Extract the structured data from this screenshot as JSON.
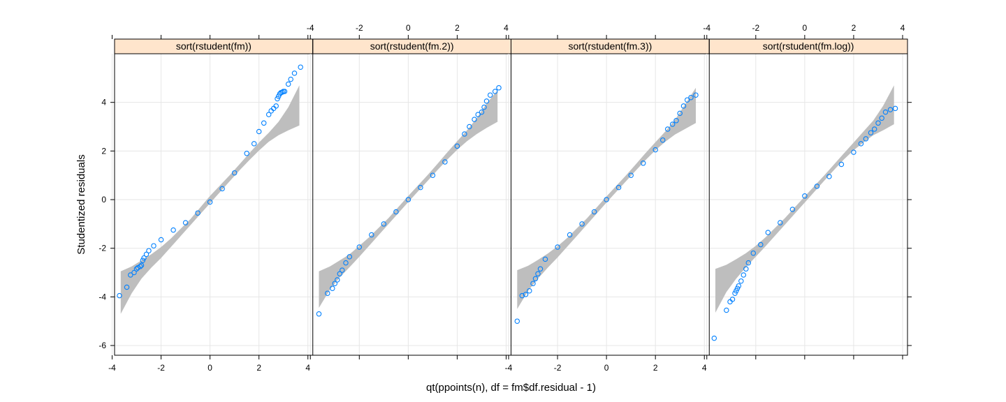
{
  "chart_data": {
    "type": "scatter",
    "xlabel": "qt(ppoints(n), df = fm$df.residual - 1)",
    "ylabel": "Studentized residuals",
    "xlim": [
      -3.9,
      4.2
    ],
    "ylim": [
      -6.4,
      6.0
    ],
    "x_ticks": [
      -4,
      -2,
      0,
      2,
      4
    ],
    "y_ticks": [
      -6,
      -4,
      -2,
      0,
      2,
      4
    ],
    "grid": true,
    "colors": {
      "points": "#0080ff",
      "band": "#bebebe",
      "strip": "#ffe5cc",
      "grid": "#e6e6e6"
    },
    "panels": [
      {
        "name": "sort(rstudent(fm))",
        "band": {
          "x": [
            -3.65,
            -3.2,
            -2.8,
            -2.4,
            -2.0,
            -1.6,
            -1.2,
            -0.8,
            0,
            0.8,
            1.2,
            1.6,
            2.0,
            2.4,
            2.8,
            3.2,
            3.65
          ],
          "lower": [
            -4.7,
            -3.85,
            -3.25,
            -2.8,
            -2.4,
            -1.95,
            -1.5,
            -1.05,
            -0.15,
            0.75,
            1.2,
            1.62,
            2.02,
            2.38,
            2.65,
            2.85,
            3.05
          ],
          "upper": [
            -2.95,
            -2.75,
            -2.5,
            -2.25,
            -1.95,
            -1.6,
            -1.2,
            -0.8,
            0.15,
            1.0,
            1.45,
            1.9,
            2.35,
            2.75,
            3.2,
            3.8,
            4.7
          ]
        },
        "points": {
          "x": [
            -3.7,
            -3.4,
            -3.25,
            -3.1,
            -3.0,
            -2.95,
            -2.85,
            -2.8,
            -2.75,
            -2.7,
            -2.6,
            -2.5,
            -2.3,
            -2.0,
            -1.5,
            -1.0,
            -0.5,
            0.0,
            0.5,
            1.0,
            1.5,
            1.8,
            2.0,
            2.2,
            2.4,
            2.5,
            2.6,
            2.7,
            2.75,
            2.8,
            2.85,
            2.9,
            2.95,
            3.0,
            3.05,
            3.2,
            3.3,
            3.45,
            3.7
          ],
          "y": [
            -3.95,
            -3.6,
            -3.1,
            -3.0,
            -2.85,
            -2.8,
            -2.75,
            -2.7,
            -2.5,
            -2.4,
            -2.25,
            -2.1,
            -1.9,
            -1.65,
            -1.25,
            -0.95,
            -0.55,
            -0.1,
            0.45,
            1.1,
            1.9,
            2.3,
            2.8,
            3.15,
            3.5,
            3.65,
            3.75,
            3.85,
            4.15,
            4.25,
            4.35,
            4.4,
            4.42,
            4.45,
            4.45,
            4.75,
            4.95,
            5.2,
            5.45
          ]
        }
      },
      {
        "name": "sort(rstudent(fm.2))",
        "band": {
          "x": [
            -3.65,
            -3.2,
            -2.8,
            -2.4,
            -2.0,
            -1.6,
            -1.2,
            -0.8,
            0,
            0.8,
            1.2,
            1.6,
            2.0,
            2.4,
            2.8,
            3.2,
            3.65
          ],
          "lower": [
            -4.45,
            -3.7,
            -3.2,
            -2.78,
            -2.35,
            -1.9,
            -1.45,
            -1.0,
            -0.1,
            0.78,
            1.22,
            1.65,
            2.05,
            2.4,
            2.7,
            2.95,
            3.2
          ],
          "upper": [
            -2.95,
            -2.75,
            -2.5,
            -2.25,
            -1.9,
            -1.55,
            -1.15,
            -0.75,
            0.15,
            1.02,
            1.48,
            1.95,
            2.4,
            2.85,
            3.35,
            3.95,
            4.5
          ]
        },
        "points": {
          "x": [
            -3.65,
            -3.3,
            -3.1,
            -3.0,
            -2.9,
            -2.8,
            -2.7,
            -2.55,
            -2.4,
            -2.0,
            -1.5,
            -1.0,
            -0.5,
            0.0,
            0.5,
            1.0,
            1.5,
            2.0,
            2.3,
            2.5,
            2.7,
            2.85,
            3.0,
            3.1,
            3.2,
            3.35,
            3.55,
            3.7
          ],
          "y": [
            -4.7,
            -3.85,
            -3.65,
            -3.45,
            -3.3,
            -3.05,
            -2.9,
            -2.6,
            -2.35,
            -1.95,
            -1.45,
            -1.0,
            -0.5,
            0.0,
            0.5,
            1.0,
            1.55,
            2.2,
            2.7,
            3.0,
            3.3,
            3.5,
            3.6,
            3.8,
            4.05,
            4.3,
            4.45,
            4.6
          ]
        }
      },
      {
        "name": "sort(rstudent(fm.3))",
        "band": {
          "x": [
            -3.65,
            -3.2,
            -2.8,
            -2.4,
            -2.0,
            -1.6,
            -1.2,
            -0.8,
            0,
            0.8,
            1.2,
            1.6,
            2.0,
            2.4,
            2.8,
            3.2,
            3.65
          ],
          "lower": [
            -4.5,
            -3.75,
            -3.25,
            -2.8,
            -2.38,
            -1.93,
            -1.48,
            -1.03,
            -0.12,
            0.76,
            1.2,
            1.63,
            2.03,
            2.38,
            2.68,
            2.9,
            3.15
          ],
          "upper": [
            -2.9,
            -2.72,
            -2.48,
            -2.22,
            -1.92,
            -1.57,
            -1.17,
            -0.77,
            0.13,
            1.0,
            1.46,
            1.92,
            2.36,
            2.8,
            3.28,
            3.9,
            4.6
          ]
        },
        "points": {
          "x": [
            -3.65,
            -3.45,
            -3.3,
            -3.15,
            -3.0,
            -2.9,
            -2.8,
            -2.7,
            -2.5,
            -2.0,
            -1.5,
            -1.0,
            -0.5,
            0.0,
            0.5,
            1.0,
            1.5,
            2.0,
            2.3,
            2.5,
            2.7,
            2.85,
            3.0,
            3.15,
            3.3,
            3.45,
            3.65
          ],
          "y": [
            -5.0,
            -3.95,
            -3.9,
            -3.75,
            -3.45,
            -3.25,
            -3.05,
            -2.85,
            -2.45,
            -1.95,
            -1.45,
            -1.0,
            -0.5,
            0.0,
            0.5,
            1.0,
            1.5,
            2.05,
            2.45,
            2.9,
            3.1,
            3.25,
            3.55,
            3.85,
            4.1,
            4.2,
            4.3
          ]
        }
      },
      {
        "name": "sort(rstudent(fm.log))",
        "band": {
          "x": [
            -3.65,
            -3.2,
            -2.8,
            -2.4,
            -2.0,
            -1.6,
            -1.2,
            -0.8,
            0,
            0.8,
            1.2,
            1.6,
            2.0,
            2.4,
            2.8,
            3.2,
            3.65
          ],
          "lower": [
            -4.65,
            -3.8,
            -3.25,
            -2.78,
            -2.35,
            -1.92,
            -1.47,
            -1.02,
            -0.12,
            0.78,
            1.22,
            1.65,
            2.03,
            2.35,
            2.65,
            2.85,
            3.1
          ],
          "upper": [
            -2.85,
            -2.68,
            -2.45,
            -2.2,
            -1.9,
            -1.55,
            -1.15,
            -0.75,
            0.13,
            1.0,
            1.45,
            1.9,
            2.35,
            2.8,
            3.25,
            3.85,
            4.7
          ]
        },
        "points": {
          "x": [
            -3.7,
            -3.2,
            -3.05,
            -2.95,
            -2.85,
            -2.8,
            -2.75,
            -2.7,
            -2.6,
            -2.5,
            -2.4,
            -2.3,
            -2.1,
            -1.8,
            -1.5,
            -1.0,
            -0.5,
            0.0,
            0.5,
            1.0,
            1.5,
            2.0,
            2.3,
            2.5,
            2.7,
            2.85,
            3.0,
            3.15,
            3.3,
            3.5,
            3.7
          ],
          "y": [
            -5.7,
            -4.55,
            -4.2,
            -4.1,
            -3.85,
            -3.75,
            -3.65,
            -3.55,
            -3.35,
            -3.1,
            -2.85,
            -2.6,
            -2.2,
            -1.85,
            -1.35,
            -0.95,
            -0.4,
            0.15,
            0.55,
            0.95,
            1.45,
            1.95,
            2.3,
            2.5,
            2.75,
            2.9,
            3.15,
            3.35,
            3.6,
            3.7,
            3.75
          ]
        }
      }
    ]
  }
}
